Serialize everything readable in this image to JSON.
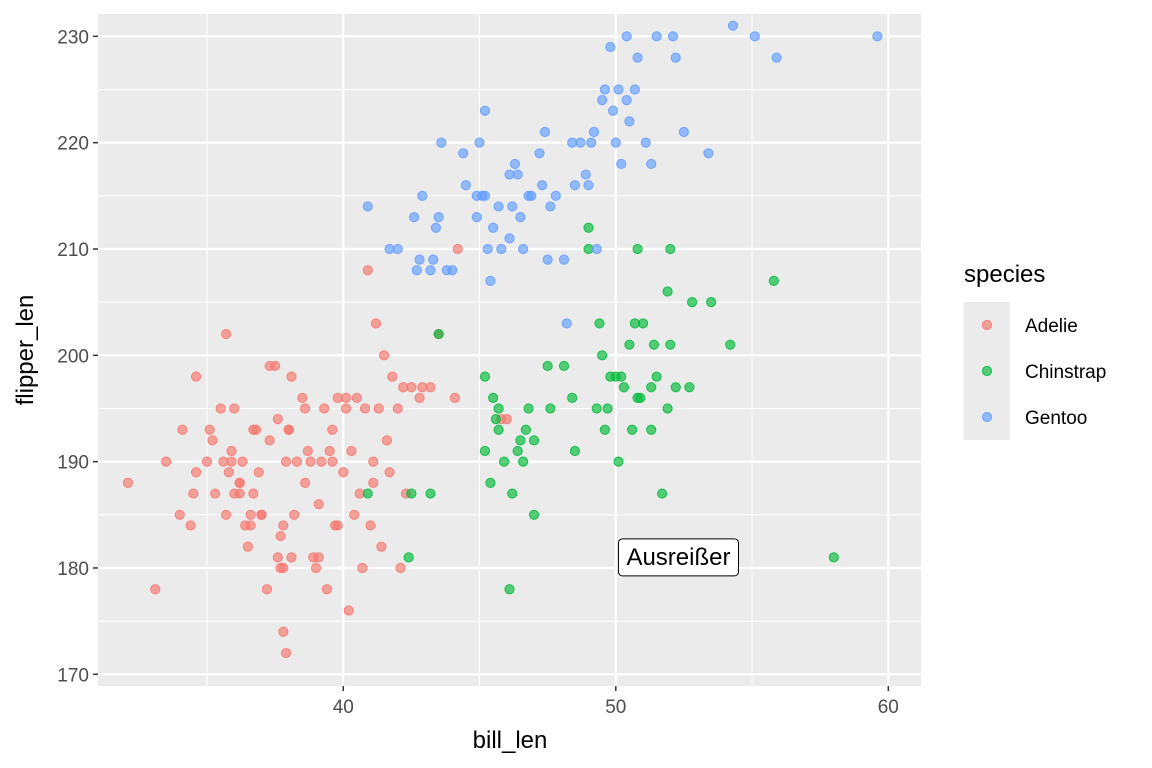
{
  "chart_data": {
    "type": "scatter",
    "title": "",
    "xlabel": "bill_len",
    "ylabel": "flipper_len",
    "xlim": [
      31.0,
      61.2
    ],
    "ylim": [
      168.9,
      232.1
    ],
    "x_ticks": [
      40,
      50,
      60
    ],
    "y_ticks": [
      170,
      180,
      190,
      200,
      210,
      220,
      230
    ],
    "grid": true,
    "legend": {
      "title": "species",
      "position": "right"
    },
    "colors": {
      "Adelie": "#F8766D",
      "Chinstrap": "#00BA38",
      "Gentoo": "#619CFF"
    },
    "annotation": {
      "text": "Ausreißer",
      "x": 52.3,
      "y": 181
    },
    "series": [
      {
        "name": "Adelie",
        "points": [
          [
            32.1,
            188
          ],
          [
            33.1,
            178
          ],
          [
            33.5,
            190
          ],
          [
            34.0,
            185
          ],
          [
            34.1,
            193
          ],
          [
            34.4,
            184
          ],
          [
            34.5,
            187
          ],
          [
            34.6,
            198
          ],
          [
            34.6,
            189
          ],
          [
            35.0,
            190
          ],
          [
            35.1,
            193
          ],
          [
            35.2,
            192
          ],
          [
            35.3,
            187
          ],
          [
            35.5,
            195
          ],
          [
            35.6,
            190
          ],
          [
            35.7,
            185
          ],
          [
            35.7,
            202
          ],
          [
            35.8,
            189
          ],
          [
            35.9,
            190
          ],
          [
            36.0,
            187
          ],
          [
            36.0,
            195
          ],
          [
            36.2,
            188
          ],
          [
            36.2,
            187
          ],
          [
            36.3,
            190
          ],
          [
            36.4,
            184
          ],
          [
            36.5,
            182
          ],
          [
            36.6,
            184
          ],
          [
            36.6,
            185
          ],
          [
            36.7,
            187
          ],
          [
            36.7,
            193
          ],
          [
            36.8,
            193
          ],
          [
            36.9,
            189
          ],
          [
            37.0,
            185
          ],
          [
            37.0,
            185
          ],
          [
            37.2,
            178
          ],
          [
            37.3,
            192
          ],
          [
            37.3,
            199
          ],
          [
            37.5,
            199
          ],
          [
            37.6,
            181
          ],
          [
            37.6,
            194
          ],
          [
            37.7,
            180
          ],
          [
            37.7,
            183
          ],
          [
            37.8,
            174
          ],
          [
            37.8,
            180
          ],
          [
            37.9,
            172
          ],
          [
            37.9,
            190
          ],
          [
            38.0,
            193
          ],
          [
            38.1,
            181
          ],
          [
            38.1,
            198
          ],
          [
            38.2,
            185
          ],
          [
            38.3,
            190
          ],
          [
            38.5,
            196
          ],
          [
            38.6,
            188
          ],
          [
            38.7,
            191
          ],
          [
            38.8,
            190
          ],
          [
            38.9,
            181
          ],
          [
            39.0,
            180
          ],
          [
            39.1,
            181
          ],
          [
            39.1,
            186
          ],
          [
            39.2,
            190
          ],
          [
            39.3,
            195
          ],
          [
            39.4,
            178
          ],
          [
            39.5,
            191
          ],
          [
            39.6,
            193
          ],
          [
            39.7,
            184
          ],
          [
            39.8,
            184
          ],
          [
            40.0,
            189
          ],
          [
            40.1,
            195
          ],
          [
            40.2,
            176
          ],
          [
            40.3,
            191
          ],
          [
            40.4,
            185
          ],
          [
            40.5,
            196
          ],
          [
            40.6,
            187
          ],
          [
            40.7,
            180
          ],
          [
            40.8,
            195
          ],
          [
            40.9,
            208
          ],
          [
            41.0,
            184
          ],
          [
            41.1,
            190
          ],
          [
            41.1,
            188
          ],
          [
            41.2,
            203
          ],
          [
            41.3,
            195
          ],
          [
            41.4,
            182
          ],
          [
            41.5,
            200
          ],
          [
            41.6,
            192
          ],
          [
            41.7,
            189
          ],
          [
            42.0,
            195
          ],
          [
            42.1,
            180
          ],
          [
            42.2,
            197
          ],
          [
            42.3,
            187
          ],
          [
            42.5,
            197
          ],
          [
            42.8,
            196
          ],
          [
            42.9,
            197
          ],
          [
            43.2,
            197
          ],
          [
            43.5,
            202
          ],
          [
            44.1,
            196
          ],
          [
            44.2,
            210
          ],
          [
            45.8,
            194
          ],
          [
            46.0,
            194
          ],
          [
            39.6,
            190
          ],
          [
            40.1,
            196
          ],
          [
            38.6,
            195
          ],
          [
            37.8,
            184
          ],
          [
            36.2,
            188
          ],
          [
            35.9,
            191
          ],
          [
            38.0,
            193
          ],
          [
            39.8,
            196
          ],
          [
            41.8,
            198
          ]
        ]
      },
      {
        "name": "Chinstrap",
        "points": [
          [
            40.9,
            187
          ],
          [
            42.4,
            181
          ],
          [
            42.5,
            187
          ],
          [
            43.2,
            187
          ],
          [
            43.5,
            202
          ],
          [
            45.2,
            198
          ],
          [
            45.2,
            191
          ],
          [
            45.4,
            188
          ],
          [
            45.6,
            194
          ],
          [
            45.7,
            195
          ],
          [
            45.7,
            193
          ],
          [
            45.9,
            190
          ],
          [
            46.1,
            178
          ],
          [
            46.2,
            187
          ],
          [
            46.4,
            191
          ],
          [
            46.5,
            192
          ],
          [
            46.6,
            190
          ],
          [
            46.7,
            193
          ],
          [
            46.8,
            195
          ],
          [
            47.0,
            185
          ],
          [
            47.0,
            192
          ],
          [
            47.5,
            199
          ],
          [
            47.6,
            195
          ],
          [
            48.1,
            199
          ],
          [
            48.5,
            191
          ],
          [
            49.0,
            212
          ],
          [
            49.0,
            210
          ],
          [
            49.3,
            195
          ],
          [
            49.4,
            203
          ],
          [
            49.5,
            200
          ],
          [
            49.7,
            195
          ],
          [
            49.8,
            198
          ],
          [
            50.0,
            198
          ],
          [
            50.1,
            190
          ],
          [
            50.2,
            198
          ],
          [
            50.3,
            197
          ],
          [
            50.5,
            201
          ],
          [
            50.6,
            193
          ],
          [
            50.8,
            196
          ],
          [
            50.9,
            196
          ],
          [
            51.0,
            203
          ],
          [
            51.3,
            197
          ],
          [
            51.4,
            201
          ],
          [
            51.5,
            198
          ],
          [
            51.7,
            187
          ],
          [
            51.9,
            195
          ],
          [
            52.0,
            201
          ],
          [
            52.2,
            197
          ],
          [
            52.7,
            197
          ],
          [
            52.8,
            205
          ],
          [
            53.5,
            205
          ],
          [
            54.2,
            201
          ],
          [
            55.8,
            207
          ],
          [
            58.0,
            181
          ],
          [
            50.7,
            203
          ],
          [
            49.6,
            193
          ],
          [
            45.5,
            196
          ],
          [
            51.3,
            193
          ],
          [
            50.8,
            210
          ],
          [
            52.0,
            210
          ],
          [
            51.9,
            206
          ],
          [
            48.4,
            196
          ]
        ]
      },
      {
        "name": "Gentoo",
        "points": [
          [
            40.9,
            214
          ],
          [
            41.7,
            210
          ],
          [
            42.0,
            210
          ],
          [
            42.6,
            213
          ],
          [
            42.7,
            208
          ],
          [
            42.8,
            209
          ],
          [
            42.9,
            215
          ],
          [
            43.2,
            208
          ],
          [
            43.3,
            209
          ],
          [
            43.4,
            212
          ],
          [
            43.5,
            213
          ],
          [
            43.6,
            220
          ],
          [
            43.8,
            208
          ],
          [
            44.0,
            208
          ],
          [
            44.4,
            219
          ],
          [
            44.5,
            216
          ],
          [
            44.9,
            213
          ],
          [
            45.0,
            220
          ],
          [
            45.1,
            215
          ],
          [
            45.2,
            215
          ],
          [
            45.2,
            223
          ],
          [
            45.3,
            210
          ],
          [
            45.5,
            212
          ],
          [
            45.7,
            214
          ],
          [
            45.8,
            210
          ],
          [
            46.1,
            217
          ],
          [
            46.2,
            214
          ],
          [
            46.3,
            218
          ],
          [
            46.4,
            217
          ],
          [
            46.5,
            213
          ],
          [
            46.8,
            215
          ],
          [
            46.9,
            215
          ],
          [
            47.2,
            219
          ],
          [
            47.3,
            216
          ],
          [
            47.5,
            209
          ],
          [
            47.6,
            214
          ],
          [
            47.8,
            215
          ],
          [
            48.1,
            209
          ],
          [
            48.2,
            203
          ],
          [
            48.4,
            220
          ],
          [
            48.5,
            216
          ],
          [
            48.7,
            220
          ],
          [
            49.0,
            216
          ],
          [
            49.1,
            220
          ],
          [
            49.2,
            221
          ],
          [
            49.3,
            210
          ],
          [
            49.5,
            224
          ],
          [
            49.8,
            229
          ],
          [
            49.9,
            223
          ],
          [
            50.0,
            220
          ],
          [
            50.1,
            225
          ],
          [
            50.2,
            218
          ],
          [
            50.4,
            224
          ],
          [
            50.5,
            222
          ],
          [
            50.7,
            225
          ],
          [
            50.8,
            228
          ],
          [
            51.1,
            220
          ],
          [
            51.3,
            218
          ],
          [
            51.5,
            230
          ],
          [
            52.1,
            230
          ],
          [
            52.2,
            228
          ],
          [
            52.5,
            221
          ],
          [
            53.4,
            219
          ],
          [
            54.3,
            231
          ],
          [
            55.1,
            230
          ],
          [
            55.9,
            228
          ],
          [
            59.6,
            230
          ],
          [
            45.4,
            207
          ],
          [
            46.6,
            210
          ],
          [
            47.4,
            221
          ],
          [
            49.6,
            225
          ],
          [
            50.4,
            230
          ],
          [
            48.9,
            217
          ],
          [
            46.1,
            211
          ],
          [
            44.9,
            215
          ]
        ]
      }
    ]
  }
}
